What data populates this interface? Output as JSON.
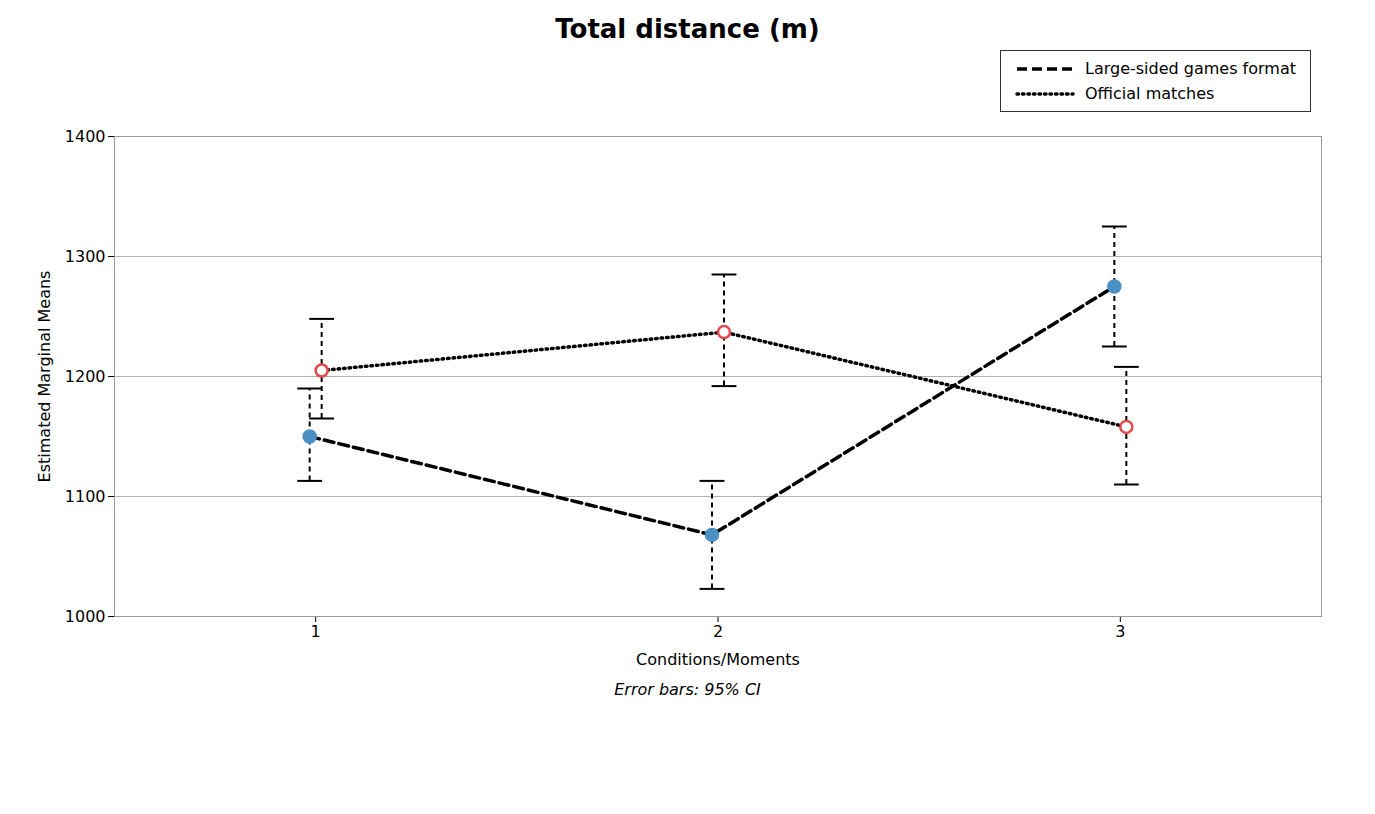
{
  "chart_data": {
    "type": "line",
    "title": "Total distance (m)",
    "xlabel": "Conditions/Moments",
    "ylabel": "Estimated Marginal Means",
    "footnote": "Error bars: 95% CI",
    "x": [
      1,
      2,
      3
    ],
    "xlim": [
      0.5,
      3.5
    ],
    "xticks": [
      1,
      2,
      3
    ],
    "ylim": [
      1000,
      1400
    ],
    "yticks": [
      1000,
      1100,
      1200,
      1300,
      1400
    ],
    "grid": "y",
    "legend": "upper right",
    "color": "#000000",
    "series": [
      {
        "name": "Large-sided games format",
        "color": "#4a90c4",
        "marker": "circle",
        "line_style": "dashed",
        "values": [
          1150,
          1068,
          1275
        ],
        "ci_low": [
          1113,
          1023,
          1225
        ],
        "ci_high": [
          1190,
          1113,
          1325
        ]
      },
      {
        "name": "Official matches",
        "color": "#e8474a",
        "marker": "open_circle",
        "line_style": "dotted",
        "values": [
          1205,
          1237,
          1158
        ],
        "ci_low": [
          1165,
          1192,
          1110
        ],
        "ci_high": [
          1248,
          1285,
          1208
        ]
      }
    ]
  }
}
